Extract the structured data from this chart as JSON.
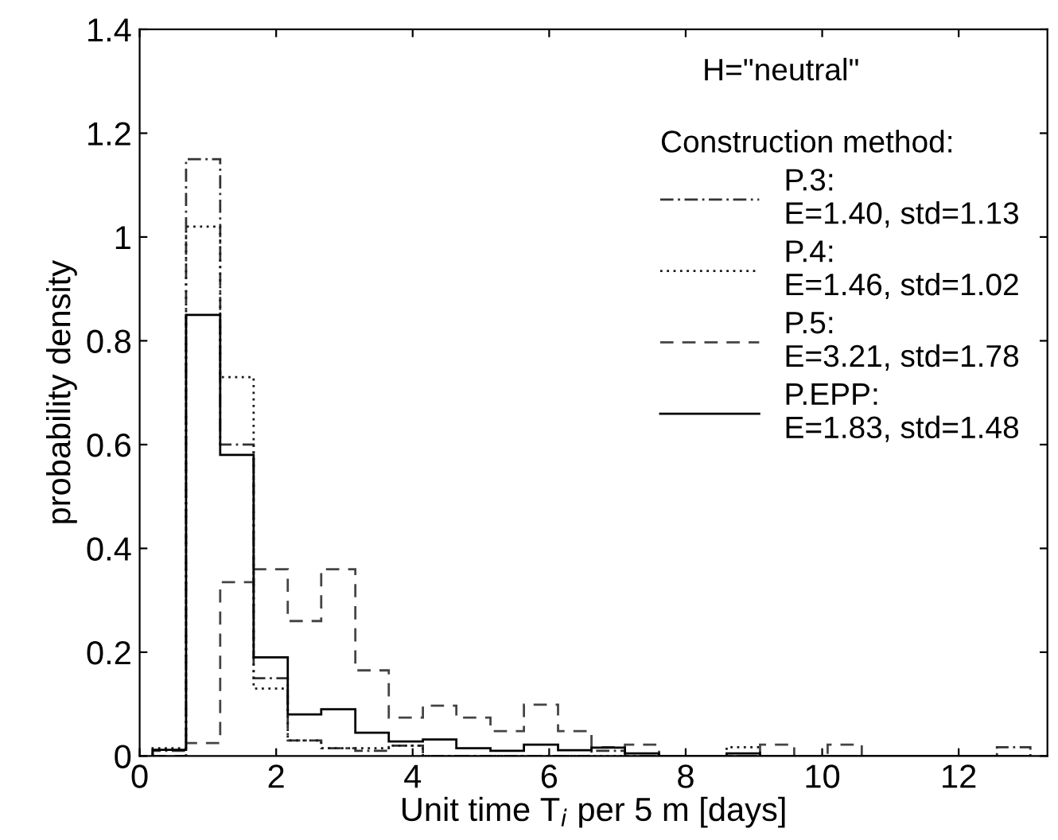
{
  "chart_data": {
    "type": "histogram",
    "xlabel": "Unit time T$_{i}$ per 5 m [days]",
    "ylabel": "probability density",
    "legend_title": "Construction method:",
    "annotations": [
      "H=\"neutral\""
    ],
    "bins": [
      0.19,
      0.68,
      1.18,
      1.67,
      2.17,
      2.66,
      3.16,
      3.65,
      4.15,
      4.64,
      5.14,
      5.63,
      6.13,
      6.62,
      7.11,
      7.61,
      8.1,
      8.6,
      9.09,
      9.59,
      10.08,
      10.58,
      11.07,
      11.57,
      12.06,
      12.56,
      13.05
    ],
    "series": [
      {
        "name": "P.3:\nE=1.40, std=1.13",
        "color": "#333333",
        "line_style": "dashdot",
        "values": [
          0.01,
          1.15,
          0.6,
          0.15,
          0.03,
          0.015,
          0.01,
          0.02,
          0,
          0,
          0,
          0,
          0,
          0.01,
          0,
          0,
          0,
          0,
          0,
          0,
          0,
          0,
          0,
          0,
          0,
          0.017
        ]
      },
      {
        "name": "P.4:\nE=1.46, std=1.02",
        "color": "#1a1a1a",
        "line_style": "dotted",
        "values": [
          0.015,
          1.02,
          0.73,
          0.13,
          0.03,
          0.015,
          0.015,
          0.02,
          0,
          0,
          0,
          0,
          0,
          0,
          0,
          0,
          0,
          0.017,
          0,
          0,
          0,
          0,
          0,
          0,
          0,
          0
        ]
      },
      {
        "name": "P.5:\nE=3.21, std=1.78",
        "color": "#444444",
        "line_style": "dashed",
        "values": [
          0,
          0.025,
          0.335,
          0.36,
          0.26,
          0.36,
          0.165,
          0.074,
          0.097,
          0.074,
          0.048,
          0.099,
          0.048,
          0.017,
          0.022,
          0,
          0,
          0,
          0.022,
          0,
          0.022,
          0,
          0,
          0,
          0,
          0
        ]
      },
      {
        "name": "P.EPP:\nE=1.83, std=1.48",
        "color": "#000000",
        "line_style": "solid",
        "values": [
          0.012,
          0.85,
          0.58,
          0.19,
          0.08,
          0.09,
          0.045,
          0.028,
          0.032,
          0.015,
          0.01,
          0.022,
          0.011,
          0.016,
          0.005,
          0,
          0,
          0.005,
          0,
          0,
          0,
          0,
          0,
          0,
          0,
          0
        ]
      }
    ],
    "xlim": [
      0,
      13.3
    ],
    "ylim": [
      0,
      1.4
    ],
    "xticks": [
      0,
      2,
      4,
      6,
      8,
      10,
      12
    ],
    "yticks": [
      0,
      0.2,
      0.4,
      0.6,
      0.8,
      1,
      1.2,
      1.4
    ],
    "grid": false,
    "legend": "top right"
  }
}
